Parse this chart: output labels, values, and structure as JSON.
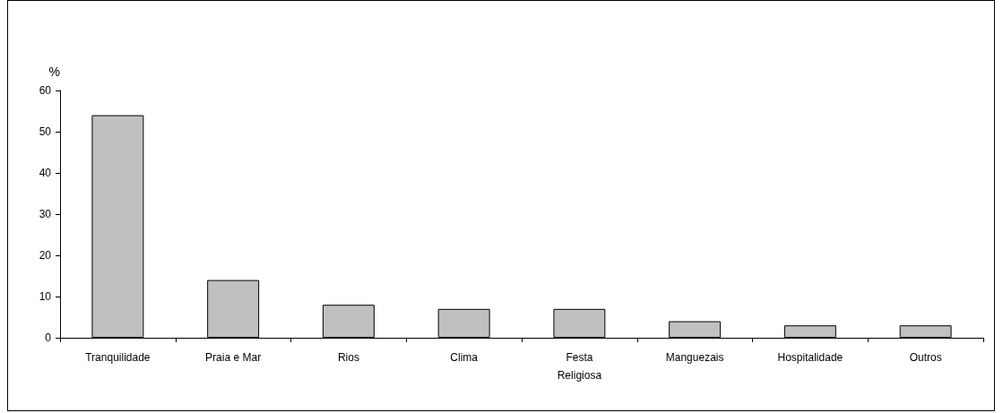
{
  "chart_data": {
    "type": "bar",
    "ylabel": "%",
    "categories": [
      "Tranquilidade",
      "Praia e Mar",
      "Rios",
      "Clima",
      "Festa\nReligiosa",
      "Manguezais",
      "Hospitalidade",
      "Outros"
    ],
    "values": [
      54,
      14,
      8,
      7,
      7,
      4,
      3,
      3
    ],
    "color": "#c0c0c0",
    "ylim": [
      0,
      60
    ],
    "yticks": [
      0,
      10,
      20,
      30,
      40,
      50,
      60
    ],
    "grid": false
  }
}
